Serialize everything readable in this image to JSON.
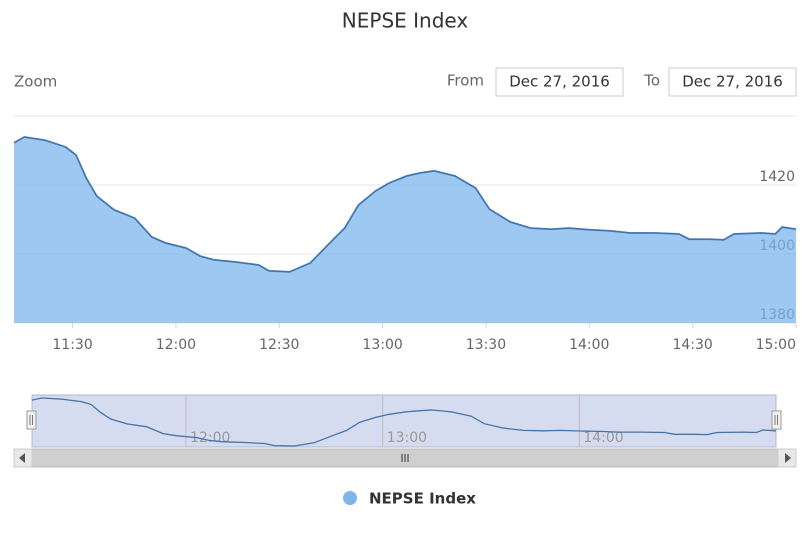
{
  "chart_data": {
    "type": "area",
    "title": "NEPSE Index",
    "range_selector": {
      "zoom_label": "Zoom",
      "from_label": "From",
      "from": "Dec 27, 2016",
      "to_label": "To",
      "to": "Dec 27, 2016"
    },
    "x": [
      673,
      676,
      682,
      688,
      691,
      694,
      697,
      702,
      708,
      713,
      717,
      723,
      727,
      731,
      737,
      744,
      747,
      753,
      759,
      765,
      769,
      773,
      778,
      782,
      787,
      791,
      795,
      801,
      807,
      811,
      817,
      823,
      829,
      834,
      840,
      846,
      852,
      859,
      866,
      869,
      875,
      879,
      882,
      890,
      894,
      896,
      900
    ],
    "series": [
      {
        "name": "NEPSE Index",
        "color": "#7cb5ec",
        "values": [
          1432.2,
          1433.9,
          1433,
          1431,
          1428.7,
          1422,
          1416.8,
          1412.8,
          1410.4,
          1404.9,
          1403.2,
          1401.7,
          1399.4,
          1398.3,
          1397.7,
          1396.8,
          1395.1,
          1394.8,
          1397.4,
          1403.5,
          1407.5,
          1414.2,
          1418.3,
          1420.6,
          1422.6,
          1423.5,
          1424.1,
          1422.6,
          1419.1,
          1413,
          1409.3,
          1407.5,
          1407.2,
          1407.5,
          1407,
          1406.7,
          1406.1,
          1406.1,
          1405.8,
          1404.3,
          1404.3,
          1404.1,
          1405.8,
          1406.1,
          1405.8,
          1407.8,
          1407.2
        ]
      }
    ],
    "xlim": [
      673,
      900
    ],
    "ylim": [
      1380,
      1440
    ],
    "xticks": [
      {
        "value": 690,
        "label": "11:30"
      },
      {
        "value": 720,
        "label": "12:00"
      },
      {
        "value": 750,
        "label": "12:30"
      },
      {
        "value": 780,
        "label": "13:00"
      },
      {
        "value": 810,
        "label": "13:30"
      },
      {
        "value": 840,
        "label": "14:00"
      },
      {
        "value": 870,
        "label": "14:30"
      },
      {
        "value": 900,
        "label": "15:00"
      }
    ],
    "yticks": [
      1380,
      1400,
      1420
    ],
    "grid": true,
    "navigator": {
      "xticks": [
        {
          "value": 720,
          "label": "12:00"
        },
        {
          "value": 780,
          "label": "13:00"
        },
        {
          "value": 840,
          "label": "14:00"
        }
      ]
    }
  }
}
